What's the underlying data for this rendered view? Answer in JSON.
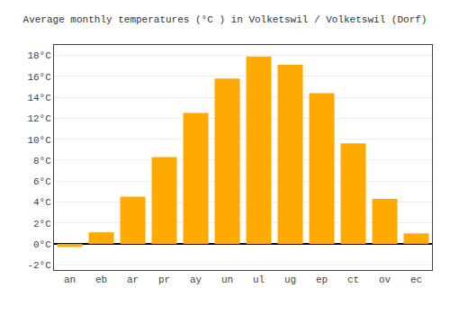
{
  "chart_data": {
    "type": "bar",
    "title": "Average monthly temperatures (°C ) in Volketswil / Volketswil (Dorf)",
    "categories": [
      "an",
      "eb",
      "ar",
      "pr",
      "ay",
      "un",
      "ul",
      "ug",
      "ep",
      "ct",
      "ov",
      "ec"
    ],
    "values": [
      -0.3,
      1.1,
      4.5,
      8.3,
      12.5,
      15.8,
      17.9,
      17.1,
      14.4,
      9.6,
      4.3,
      1.0
    ],
    "color": "#FFAA00",
    "ylim": [
      -2.5,
      19.0
    ],
    "yticks": [
      {
        "value": -2,
        "label": "-2°C"
      },
      {
        "value": 0,
        "label": "0°C"
      },
      {
        "value": 2,
        "label": "2°C"
      },
      {
        "value": 4,
        "label": "4°C"
      },
      {
        "value": 6,
        "label": "6°C"
      },
      {
        "value": 8,
        "label": "8°C"
      },
      {
        "value": 10,
        "label": "10°C"
      },
      {
        "value": 12,
        "label": "12°C"
      },
      {
        "value": 14,
        "label": "14°C"
      },
      {
        "value": 16,
        "label": "16°C"
      },
      {
        "value": 18,
        "label": "18°C"
      }
    ],
    "grid": true
  }
}
